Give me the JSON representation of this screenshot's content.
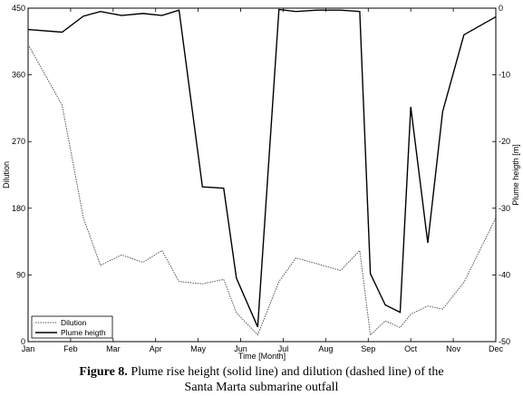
{
  "chart_data": {
    "type": "line",
    "xlabel": "Time [Month]",
    "ylabel_left": "Dilution",
    "ylabel_right": "Plume heigth [m]",
    "x_ticks": [
      "Jan",
      "Feb",
      "Mar",
      "Apr",
      "May",
      "Jun",
      "Jul",
      "Aug",
      "Sep",
      "Oct",
      "Nov",
      "Dec"
    ],
    "y_left_ticks": [
      "0",
      "90",
      "180",
      "270",
      "360",
      "450"
    ],
    "y_right_ticks": [
      "-50",
      "-40",
      "-30",
      "-20",
      "-10",
      "0"
    ],
    "y_left_lim": [
      0,
      450
    ],
    "y_right_lim": [
      -50,
      0
    ],
    "x_lim": [
      0,
      11
    ],
    "grid": false,
    "legend_position": "bottom-left",
    "series": [
      {
        "name": "Dilution",
        "axis": "left",
        "style": "dashed",
        "x": [
          0,
          0.8,
          1.3,
          1.7,
          2.2,
          2.7,
          3.15,
          3.55,
          4.1,
          4.6,
          4.9,
          5.4,
          5.9,
          6.3,
          6.8,
          7.35,
          7.8,
          8.05,
          8.4,
          8.75,
          9.0,
          9.4,
          9.75,
          10.25,
          11.0
        ],
        "values": [
          401,
          319,
          167,
          103,
          117,
          107,
          123,
          81,
          78,
          84,
          39,
          9,
          81,
          113,
          105,
          96,
          123,
          9,
          28,
          19,
          37,
          48,
          44,
          80,
          167
        ]
      },
      {
        "name": "Plume heigth",
        "axis": "right",
        "style": "solid",
        "x": [
          0,
          0.8,
          1.3,
          1.7,
          2.2,
          2.7,
          3.15,
          3.55,
          4.1,
          4.6,
          4.9,
          5.4,
          5.9,
          6.3,
          6.8,
          7.35,
          7.8,
          8.05,
          8.4,
          8.75,
          9.0,
          9.4,
          9.75,
          10.25,
          11.0
        ],
        "values": [
          -3.2,
          -3.6,
          -1.2,
          -0.5,
          -1.1,
          -0.8,
          -1.1,
          -0.3,
          -26.8,
          -27.0,
          -40.5,
          -47.8,
          -0.2,
          -0.5,
          -0.3,
          -0.3,
          -0.5,
          -39.8,
          -44.5,
          -45.6,
          -14.8,
          -35.2,
          -15.5,
          -4.0,
          -1.3
        ]
      }
    ]
  },
  "caption": {
    "label": "Figure 8.",
    "text": " Plume rise height (solid line) and dilution (dashed line) of the",
    "line2": "Santa Marta submarine outfall"
  }
}
